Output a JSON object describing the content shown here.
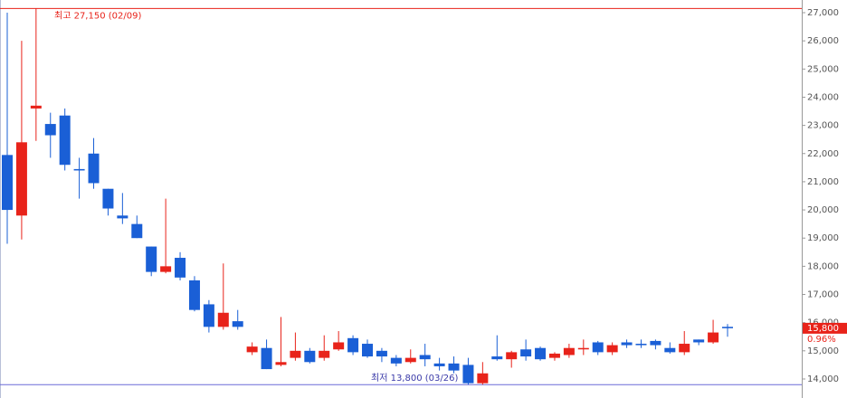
{
  "chart_data": {
    "type": "candlestick",
    "open": [
      21950,
      19800,
      23600,
      23050,
      23350,
      21450,
      22000,
      20750,
      19800,
      19500,
      18700,
      17800,
      18300,
      17500,
      16650,
      15850,
      16050,
      14950,
      15100,
      14500,
      14750,
      15000,
      14750,
      15050,
      15450,
      15250,
      15000,
      14750,
      14600,
      14850,
      14550,
      14550,
      14500,
      13850,
      14800,
      14700,
      15050,
      15100,
      14750,
      14850,
      15050,
      15300,
      14950,
      15300,
      15250,
      15350,
      15100,
      14950,
      15400,
      15300,
      15850
    ],
    "high": [
      27000,
      26000,
      27150,
      23450,
      23600,
      21850,
      22550,
      20750,
      20600,
      19800,
      18700,
      20400,
      18500,
      17650,
      16800,
      18100,
      16450,
      15300,
      15400,
      16200,
      15650,
      15100,
      15550,
      15700,
      15550,
      15400,
      15100,
      14850,
      15050,
      15250,
      14750,
      14800,
      14750,
      14600,
      15550,
      15000,
      15400,
      15150,
      14950,
      15250,
      15400,
      15350,
      15300,
      15400,
      15400,
      15400,
      15300,
      15700,
      15400,
      16100,
      15950
    ],
    "low": [
      18800,
      18950,
      22450,
      21850,
      21400,
      20400,
      20750,
      19800,
      19500,
      19000,
      17650,
      17750,
      17500,
      16400,
      15650,
      15750,
      15750,
      14850,
      14350,
      14450,
      14650,
      14550,
      14650,
      15000,
      14850,
      14750,
      14600,
      14450,
      14550,
      14450,
      14300,
      14200,
      13800,
      13800,
      14650,
      14400,
      14650,
      14650,
      14650,
      14750,
      14850,
      14850,
      14850,
      15100,
      15100,
      15050,
      14900,
      14850,
      15200,
      15250,
      15500
    ],
    "close": [
      20000,
      22400,
      23700,
      22650,
      21600,
      21400,
      20950,
      20050,
      19700,
      19000,
      17800,
      18000,
      17600,
      16450,
      15850,
      16350,
      15850,
      15150,
      14350,
      14600,
      15000,
      14600,
      15000,
      15300,
      14950,
      14800,
      14800,
      14550,
      14750,
      14700,
      14450,
      14300,
      13850,
      14200,
      14700,
      14950,
      14800,
      14700,
      14900,
      15100,
      15100,
      14950,
      15200,
      15200,
      15200,
      15200,
      14950,
      15250,
      15300,
      15650,
      15800
    ],
    "up_color": "#e8231a",
    "down_color": "#1a5fd6",
    "ylim": [
      13325,
      27450
    ],
    "yticks": [
      {
        "value": 14000,
        "label": "14,000"
      },
      {
        "value": 15000,
        "label": "15,000"
      },
      {
        "value": 16000,
        "label": "16,000"
      },
      {
        "value": 17000,
        "label": "17,000"
      },
      {
        "value": 18000,
        "label": "18,000"
      },
      {
        "value": 19000,
        "label": "19,000"
      },
      {
        "value": 20000,
        "label": "20,000"
      },
      {
        "value": 21000,
        "label": "21,000"
      },
      {
        "value": 22000,
        "label": "22,000"
      },
      {
        "value": 23000,
        "label": "23,000"
      },
      {
        "value": 24000,
        "label": "24,000"
      },
      {
        "value": 25000,
        "label": "25,000"
      },
      {
        "value": 26000,
        "label": "26,000"
      },
      {
        "value": 27000,
        "label": "27,000"
      }
    ],
    "max_line": {
      "value": 27150,
      "label": "최고 27,150 (02/09)",
      "color": "#e8231a"
    },
    "min_line": {
      "value": 13800,
      "label": "최저 13,800 (03/26)",
      "color": "#6a6ad8"
    },
    "last": {
      "value": 15800,
      "label": "15,800",
      "change": "0.96%",
      "color": "#e8231a"
    }
  }
}
